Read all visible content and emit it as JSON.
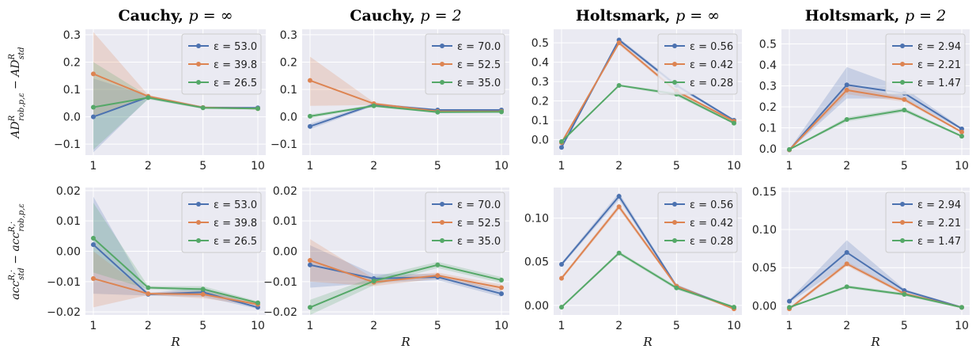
{
  "row_ylabels": [
    "AD^R_rob,p,ε − AD^R_std",
    "acc^R,·_std − acc^R,·_rob,p,ε"
  ],
  "xlabel": "R",
  "colors": [
    "#4c72b0",
    "#dd8452",
    "#55a868"
  ],
  "chart_data": [
    {
      "type": "line",
      "row": 0,
      "col": 0,
      "title_bold": "Cauchy,",
      "title_math": "p = ∞",
      "categories": [
        "1",
        "2",
        "5",
        "10"
      ],
      "ylim": [
        -0.14,
        0.32
      ],
      "yticks": [
        -0.1,
        0.0,
        0.1,
        0.2,
        0.3
      ],
      "ytick_labels": [
        "−0.1",
        "0.0",
        "0.1",
        "0.2",
        "0.3"
      ],
      "legend_position": "top-right",
      "series": [
        {
          "name": "ε = 53.0",
          "values": [
            0.0,
            0.072,
            0.034,
            0.033
          ],
          "band": [
            [
              -0.13,
              0.14
            ],
            [
              0.066,
              0.078
            ],
            [
              0.03,
              0.038
            ],
            [
              0.03,
              0.036
            ]
          ]
        },
        {
          "name": "ε = 39.8",
          "values": [
            0.157,
            0.075,
            0.034,
            0.03
          ],
          "band": [
            [
              0.0,
              0.31
            ],
            [
              0.07,
              0.08
            ],
            [
              0.03,
              0.038
            ],
            [
              0.027,
              0.033
            ]
          ]
        },
        {
          "name": "ε = 26.5",
          "values": [
            0.035,
            0.07,
            0.033,
            0.03
          ],
          "band": [
            [
              -0.12,
              0.2
            ],
            [
              0.064,
              0.076
            ],
            [
              0.029,
              0.037
            ],
            [
              0.027,
              0.033
            ]
          ]
        }
      ]
    },
    {
      "type": "line",
      "row": 0,
      "col": 1,
      "title_bold": "Cauchy,",
      "title_math": "p = 2",
      "categories": [
        "1",
        "2",
        "5",
        "10"
      ],
      "ylim": [
        -0.14,
        0.32
      ],
      "yticks": [
        -0.1,
        0.0,
        0.1,
        0.2,
        0.3
      ],
      "ytick_labels": [
        "−0.1",
        "0.0",
        "0.1",
        "0.2",
        "0.3"
      ],
      "legend_position": "top-right",
      "series": [
        {
          "name": "ε = 70.0",
          "values": [
            -0.035,
            0.045,
            0.025,
            0.025
          ],
          "band": [
            [
              -0.045,
              -0.025
            ],
            [
              0.04,
              0.05
            ],
            [
              0.022,
              0.028
            ],
            [
              0.022,
              0.028
            ]
          ]
        },
        {
          "name": "ε = 52.5",
          "values": [
            0.133,
            0.048,
            0.02,
            0.02
          ],
          "band": [
            [
              0.04,
              0.22
            ],
            [
              0.043,
              0.053
            ],
            [
              0.017,
              0.023
            ],
            [
              0.017,
              0.023
            ]
          ]
        },
        {
          "name": "ε = 35.0",
          "values": [
            0.002,
            0.04,
            0.017,
            0.018
          ],
          "band": [
            [
              -0.005,
              0.009
            ],
            [
              0.036,
              0.044
            ],
            [
              0.014,
              0.02
            ],
            [
              0.015,
              0.021
            ]
          ]
        }
      ]
    },
    {
      "type": "line",
      "row": 0,
      "col": 2,
      "title_bold": "Holtsmark,",
      "title_math": "p = ∞",
      "categories": [
        "1",
        "2",
        "5",
        "10"
      ],
      "ylim": [
        -0.08,
        0.57
      ],
      "yticks": [
        0.0,
        0.1,
        0.2,
        0.3,
        0.4,
        0.5
      ],
      "ytick_labels": [
        "0.0",
        "0.1",
        "0.2",
        "0.3",
        "0.4",
        "0.5"
      ],
      "legend_position": "top-right",
      "series": [
        {
          "name": "ε = 0.56",
          "values": [
            -0.04,
            0.515,
            0.28,
            0.1
          ],
          "band": [
            [
              -0.045,
              -0.035
            ],
            [
              0.505,
              0.525
            ],
            [
              0.27,
              0.29
            ],
            [
              0.095,
              0.105
            ]
          ]
        },
        {
          "name": "ε = 0.42",
          "values": [
            -0.015,
            0.5,
            0.25,
            0.095
          ],
          "band": [
            [
              -0.02,
              -0.01
            ],
            [
              0.49,
              0.51
            ],
            [
              0.24,
              0.26
            ],
            [
              0.09,
              0.1
            ]
          ]
        },
        {
          "name": "ε = 0.28",
          "values": [
            -0.01,
            0.28,
            0.235,
            0.085
          ],
          "band": [
            [
              -0.015,
              -0.005
            ],
            [
              0.275,
              0.285
            ],
            [
              0.225,
              0.245
            ],
            [
              0.08,
              0.09
            ]
          ]
        }
      ]
    },
    {
      "type": "line",
      "row": 0,
      "col": 3,
      "title_bold": "Holtsmark,",
      "title_math": "p = 2",
      "categories": [
        "1",
        "2",
        "5",
        "10"
      ],
      "ylim": [
        -0.03,
        0.57
      ],
      "yticks": [
        0.0,
        0.1,
        0.2,
        0.3,
        0.4,
        0.5
      ],
      "ytick_labels": [
        "0.0",
        "0.1",
        "0.2",
        "0.3",
        "0.4",
        "0.5"
      ],
      "legend_position": "top-right",
      "series": [
        {
          "name": "ε = 2.94",
          "values": [
            -0.005,
            0.305,
            0.265,
            0.095
          ],
          "band": [
            [
              -0.008,
              -0.002
            ],
            [
              0.24,
              0.39
            ],
            [
              0.24,
              0.29
            ],
            [
              0.09,
              0.1
            ]
          ]
        },
        {
          "name": "ε = 2.21",
          "values": [
            -0.005,
            0.28,
            0.235,
            0.08
          ],
          "band": [
            [
              -0.008,
              -0.002
            ],
            [
              0.26,
              0.3
            ],
            [
              0.225,
              0.245
            ],
            [
              0.075,
              0.085
            ]
          ]
        },
        {
          "name": "ε = 1.47",
          "values": [
            -0.003,
            0.14,
            0.185,
            0.06
          ],
          "band": [
            [
              -0.006,
              0.0
            ],
            [
              0.13,
              0.15
            ],
            [
              0.175,
              0.195
            ],
            [
              0.055,
              0.065
            ]
          ]
        }
      ]
    },
    {
      "type": "line",
      "row": 1,
      "col": 0,
      "title_bold": "",
      "title_math": "",
      "categories": [
        "1",
        "2",
        "5",
        "10"
      ],
      "ylim": [
        -0.021,
        0.021
      ],
      "yticks": [
        -0.02,
        -0.01,
        0.0,
        0.01,
        0.02
      ],
      "ytick_labels": [
        "−0.02",
        "−0.01",
        "0.00",
        "0.01",
        "0.02"
      ],
      "legend_position": "top-right",
      "series": [
        {
          "name": "ε = 53.0",
          "values": [
            0.0022,
            -0.0142,
            -0.0135,
            -0.0185
          ],
          "band": [
            [
              -0.014,
              0.018
            ],
            [
              -0.0146,
              -0.0138
            ],
            [
              -0.015,
              -0.012
            ],
            [
              -0.019,
              -0.018
            ]
          ]
        },
        {
          "name": "ε = 39.8",
          "values": [
            -0.009,
            -0.014,
            -0.0142,
            -0.0175
          ],
          "band": [
            [
              -0.0185,
              0.0
            ],
            [
              -0.0144,
              -0.0136
            ],
            [
              -0.0155,
              -0.013
            ],
            [
              -0.018,
              -0.017
            ]
          ]
        },
        {
          "name": "ε = 26.5",
          "values": [
            0.0043,
            -0.012,
            -0.0125,
            -0.017
          ],
          "band": [
            [
              -0.007,
              0.016
            ],
            [
              -0.0125,
              -0.0115
            ],
            [
              -0.0135,
              -0.0115
            ],
            [
              -0.0175,
              -0.0165
            ]
          ]
        }
      ]
    },
    {
      "type": "line",
      "row": 1,
      "col": 1,
      "title_bold": "",
      "title_math": "",
      "categories": [
        "1",
        "2",
        "5",
        "10"
      ],
      "ylim": [
        -0.021,
        0.021
      ],
      "yticks": [
        -0.02,
        -0.01,
        0.0,
        0.01,
        0.02
      ],
      "ytick_labels": [
        "−0.02",
        "−0.01",
        "0.00",
        "0.01",
        "0.02"
      ],
      "legend_position": "top-right",
      "series": [
        {
          "name": "ε = 70.0",
          "values": [
            -0.0045,
            -0.009,
            -0.0085,
            -0.014
          ],
          "band": [
            [
              -0.012,
              0.002
            ],
            [
              -0.0105,
              -0.0075
            ],
            [
              -0.0095,
              -0.0075
            ],
            [
              -0.015,
              -0.013
            ]
          ]
        },
        {
          "name": "ε = 52.5",
          "values": [
            -0.003,
            -0.0102,
            -0.008,
            -0.012
          ],
          "band": [
            [
              -0.01,
              0.004
            ],
            [
              -0.0115,
              -0.009
            ],
            [
              -0.009,
              -0.007
            ],
            [
              -0.013,
              -0.011
            ]
          ]
        },
        {
          "name": "ε = 35.0",
          "values": [
            -0.0185,
            -0.0098,
            -0.0045,
            -0.0095
          ],
          "band": [
            [
              -0.021,
              -0.016
            ],
            [
              -0.0112,
              -0.0085
            ],
            [
              -0.0055,
              -0.0035
            ],
            [
              -0.0105,
              -0.0085
            ]
          ]
        }
      ]
    },
    {
      "type": "line",
      "row": 1,
      "col": 2,
      "title_bold": "",
      "title_math": "",
      "categories": [
        "1",
        "2",
        "5",
        "10"
      ],
      "ylim": [
        -0.011,
        0.135
      ],
      "yticks": [
        0.0,
        0.05,
        0.1
      ],
      "ytick_labels": [
        "0.00",
        "0.05",
        "0.10"
      ],
      "legend_position": "top-right",
      "series": [
        {
          "name": "ε = 0.56",
          "values": [
            0.047,
            0.125,
            0.022,
            -0.003
          ],
          "band": [
            [
              0.045,
              0.049
            ],
            [
              0.121,
              0.129
            ],
            [
              0.02,
              0.024
            ],
            [
              -0.004,
              -0.002
            ]
          ]
        },
        {
          "name": "ε = 0.42",
          "values": [
            0.031,
            0.113,
            0.022,
            -0.004
          ],
          "band": [
            [
              0.029,
              0.033
            ],
            [
              0.11,
              0.116
            ],
            [
              0.02,
              0.024
            ],
            [
              -0.005,
              -0.003
            ]
          ]
        },
        {
          "name": "ε = 0.28",
          "values": [
            -0.002,
            0.06,
            0.02,
            -0.002
          ],
          "band": [
            [
              -0.003,
              -0.001
            ],
            [
              0.058,
              0.062
            ],
            [
              0.018,
              0.022
            ],
            [
              -0.003,
              -0.001
            ]
          ]
        }
      ]
    },
    {
      "type": "line",
      "row": 1,
      "col": 3,
      "title_bold": "",
      "title_math": "",
      "categories": [
        "1",
        "2",
        "5",
        "10"
      ],
      "ylim": [
        -0.012,
        0.155
      ],
      "yticks": [
        0.0,
        0.05,
        0.1,
        0.15
      ],
      "ytick_labels": [
        "0.00",
        "0.05",
        "0.10",
        "0.15"
      ],
      "legend_position": "top-right",
      "series": [
        {
          "name": "ε = 2.94",
          "values": [
            0.006,
            0.07,
            0.02,
            -0.002
          ],
          "band": [
            [
              0.004,
              0.008
            ],
            [
              0.055,
              0.086
            ],
            [
              0.018,
              0.022
            ],
            [
              -0.003,
              -0.001
            ]
          ]
        },
        {
          "name": "ε = 2.21",
          "values": [
            -0.004,
            0.055,
            0.016,
            -0.002
          ],
          "band": [
            [
              -0.006,
              -0.002
            ],
            [
              0.052,
              0.058
            ],
            [
              0.014,
              0.018
            ],
            [
              -0.003,
              -0.001
            ]
          ]
        },
        {
          "name": "ε = 1.47",
          "values": [
            -0.002,
            0.025,
            0.015,
            -0.002
          ],
          "band": [
            [
              -0.003,
              -0.001
            ],
            [
              0.023,
              0.027
            ],
            [
              0.013,
              0.017
            ],
            [
              -0.003,
              -0.001
            ]
          ]
        }
      ]
    }
  ]
}
